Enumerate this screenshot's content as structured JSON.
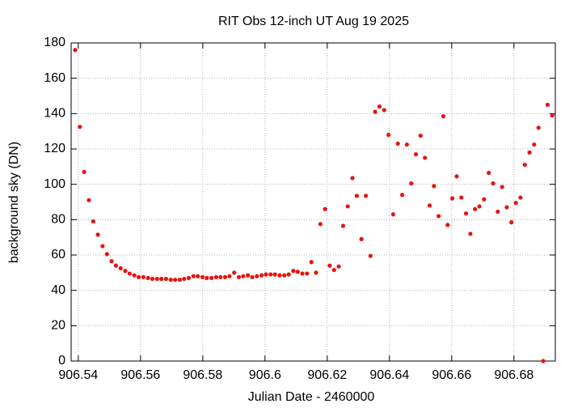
{
  "chart_data": {
    "type": "scatter",
    "title": "RIT Obs 12-inch UT Aug 19 2025",
    "xlabel": "Julian Date - 2460000",
    "ylabel": "background sky (DN)",
    "color": "#e8130f",
    "grid": true,
    "xlim": [
      906.5377,
      906.6933
    ],
    "ylim": [
      0,
      180
    ],
    "xticks": [
      906.54,
      906.56,
      906.58,
      906.6,
      906.62,
      906.64,
      906.66,
      906.68
    ],
    "yticks": [
      0,
      20,
      40,
      60,
      80,
      100,
      120,
      140,
      160,
      180
    ],
    "x": [
      906.539,
      906.5405,
      906.5419,
      906.5434,
      906.5448,
      906.5463,
      906.5478,
      906.5492,
      906.5507,
      906.5521,
      906.5536,
      906.5551,
      906.5565,
      906.558,
      906.5594,
      906.5609,
      906.5624,
      906.5638,
      906.5653,
      906.5667,
      906.5682,
      906.5697,
      906.5711,
      906.5726,
      906.574,
      906.5755,
      906.577,
      906.5784,
      906.5799,
      906.5813,
      906.5828,
      906.5843,
      906.5857,
      906.5872,
      906.5886,
      906.5901,
      906.5916,
      906.593,
      906.5945,
      906.5959,
      906.5974,
      906.5989,
      906.6003,
      906.6018,
      906.6032,
      906.6047,
      906.6062,
      906.6076,
      906.6091,
      906.6105,
      906.612,
      906.6135,
      906.6149,
      906.6164,
      906.6178,
      906.6193,
      906.6208,
      906.6222,
      906.6237,
      906.6251,
      906.6266,
      906.6281,
      906.6295,
      906.631,
      906.6324,
      906.6339,
      906.6354,
      906.6368,
      906.6383,
      906.6397,
      906.6412,
      906.6427,
      906.6441,
      906.6456,
      906.647,
      906.6485,
      906.65,
      906.6514,
      906.6529,
      906.6543,
      906.6558,
      906.6573,
      906.6587,
      906.6602,
      906.6616,
      906.6631,
      906.6646,
      906.666,
      906.6675,
      906.6689,
      906.6704,
      906.6719,
      906.6733,
      906.6748,
      906.6762,
      906.6777,
      906.6792,
      906.6806,
      906.6821,
      906.6835,
      906.685,
      906.6865,
      906.6879,
      906.6894,
      906.6908,
      906.6923
    ],
    "values": [
      176,
      132.5,
      107,
      91,
      79,
      71.5,
      65,
      60.5,
      56.5,
      54,
      52.5,
      51,
      49.5,
      48.5,
      47.5,
      47.5,
      47,
      46.5,
      46.5,
      46.5,
      46.5,
      46,
      46,
      46,
      46.5,
      47,
      48,
      48,
      47.5,
      47,
      47,
      47.5,
      47.5,
      47.5,
      48,
      50,
      47.5,
      48,
      48.5,
      47.5,
      48,
      48.5,
      49,
      49,
      49,
      48.5,
      48.5,
      49,
      51,
      50.5,
      49.5,
      49.5,
      56,
      50,
      77.5,
      86,
      54,
      51.5,
      53.5,
      76.5,
      87.5,
      103.5,
      93.5,
      69,
      93.5,
      59.5,
      141,
      144,
      142,
      128,
      83,
      123,
      94,
      122.5,
      100.5,
      117,
      127.5,
      115,
      88,
      99,
      82,
      138.5,
      77,
      92,
      104.5,
      92.5,
      83.5,
      72,
      86,
      87.5,
      91.5,
      106.5,
      100.5,
      84.5,
      98.5,
      87,
      78.5,
      89.5,
      92.5,
      111,
      118,
      122.5,
      132,
      0,
      145,
      139
    ]
  }
}
